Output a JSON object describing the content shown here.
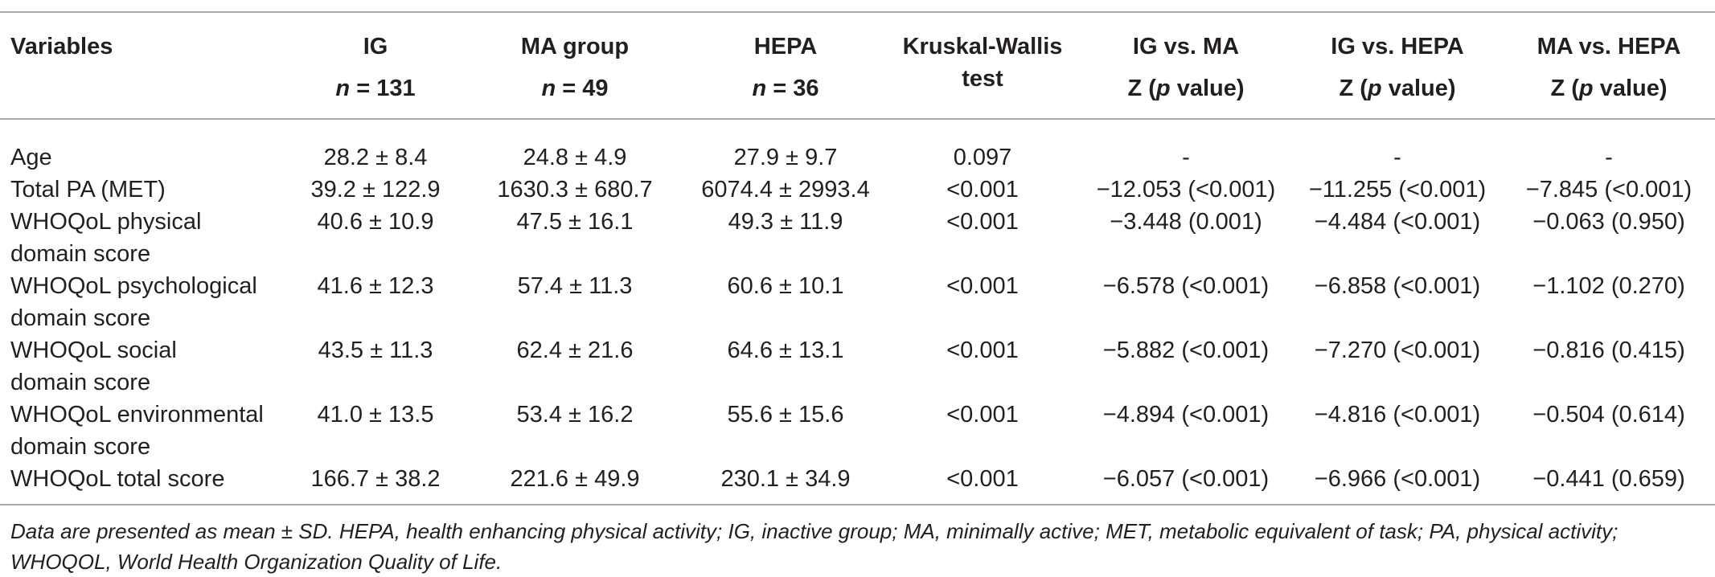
{
  "table": {
    "headers": [
      {
        "line1": "Variables",
        "line2": ""
      },
      {
        "line1": "IG",
        "line2_italic": "n",
        "line2_rest": " = 131"
      },
      {
        "line1": "MA group",
        "line2_italic": "n",
        "line2_rest": " = 49"
      },
      {
        "line1": "HEPA",
        "line2_italic": "n",
        "line2_rest": " = 36"
      },
      {
        "line1": "Kruskal-Wallis",
        "line2": "test"
      },
      {
        "line1": "IG vs. MA",
        "line2_pre": "Z (",
        "line2_italic": "p",
        "line2_post": " value)"
      },
      {
        "line1": "IG vs. HEPA",
        "line2_pre": "Z (",
        "line2_italic": "p",
        "line2_post": " value)"
      },
      {
        "line1": "MA vs. HEPA",
        "line2_pre": "Z (",
        "line2_italic": "p",
        "line2_post": " value)"
      }
    ],
    "rows": [
      {
        "variable": [
          "Age"
        ],
        "ig": "28.2 ± 8.4",
        "ma": "24.8 ± 4.9",
        "hepa": "27.9 ± 9.7",
        "kw": "0.097",
        "ig_ma": "-",
        "ig_hepa": "-",
        "ma_hepa": "-"
      },
      {
        "variable": [
          "Total PA (MET)"
        ],
        "ig": "39.2 ± 122.9",
        "ma": "1630.3 ± 680.7",
        "hepa": "6074.4 ± 2993.4",
        "kw": "<0.001",
        "ig_ma": "−12.053 (<0.001)",
        "ig_hepa": "−11.255 (<0.001)",
        "ma_hepa": "−7.845 (<0.001)"
      },
      {
        "variable": [
          "WHOQoL physical",
          "domain score"
        ],
        "ig": "40.6 ± 10.9",
        "ma": "47.5 ± 16.1",
        "hepa": "49.3 ± 11.9",
        "kw": "<0.001",
        "ig_ma": "−3.448 (0.001)",
        "ig_hepa": "−4.484 (<0.001)",
        "ma_hepa": "−0.063 (0.950)"
      },
      {
        "variable": [
          "WHOQoL psychological",
          "domain score"
        ],
        "ig": "41.6 ± 12.3",
        "ma": "57.4 ± 11.3",
        "hepa": "60.6 ± 10.1",
        "kw": "<0.001",
        "ig_ma": "−6.578 (<0.001)",
        "ig_hepa": "−6.858 (<0.001)",
        "ma_hepa": "−1.102 (0.270)"
      },
      {
        "variable": [
          "WHOQoL social",
          "domain score"
        ],
        "ig": "43.5 ± 11.3",
        "ma": "62.4 ± 21.6",
        "hepa": "64.6 ± 13.1",
        "kw": "<0.001",
        "ig_ma": "−5.882 (<0.001)",
        "ig_hepa": "−7.270 (<0.001)",
        "ma_hepa": "−0.816 (0.415)"
      },
      {
        "variable": [
          "WHOQoL environmental",
          "domain score"
        ],
        "ig": "41.0 ± 13.5",
        "ma": "53.4 ± 16.2",
        "hepa": "55.6 ± 15.6",
        "kw": "<0.001",
        "ig_ma": "−4.894 (<0.001)",
        "ig_hepa": "−4.816 (<0.001)",
        "ma_hepa": "−0.504 (0.614)"
      },
      {
        "variable": [
          "WHOQoL total score"
        ],
        "ig": "166.7 ± 38.2",
        "ma": "221.6 ± 49.9",
        "hepa": "230.1 ± 34.9",
        "kw": "<0.001",
        "ig_ma": "−6.057 (<0.001)",
        "ig_hepa": "−6.966 (<0.001)",
        "ma_hepa": "−0.441 (0.659)"
      }
    ]
  },
  "footnote": "Data are presented as mean ± SD. HEPA, health enhancing physical activity; IG, inactive group; MA, minimally active; MET, metabolic equivalent of task; PA, physical activity; WHOQOL, World Health Organization Quality of Life."
}
